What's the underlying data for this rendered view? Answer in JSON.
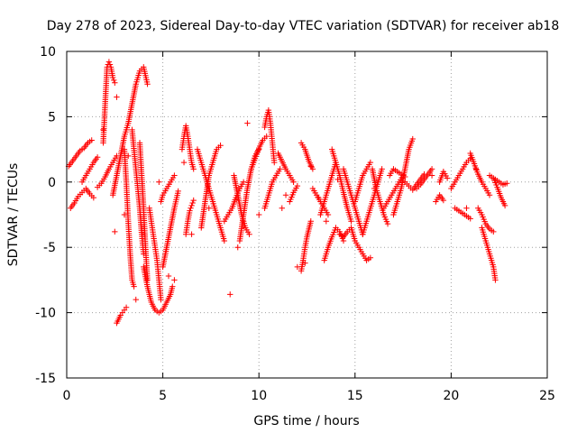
{
  "chart_data": {
    "type": "scatter",
    "title": "Day 278 of 2023, Sidereal Day-to-day VTEC variation (SDTVAR) for receiver ab18",
    "xlabel": "GPS time / hours",
    "ylabel": "SDTVAR / TECUs",
    "xlim": [
      0,
      25
    ],
    "ylim": [
      -15,
      10
    ],
    "xticks": [
      0,
      5,
      10,
      15,
      20,
      25
    ],
    "yticks": [
      -15,
      -10,
      -5,
      0,
      5,
      10
    ],
    "grid": true,
    "colors": {
      "points": "#ff0000",
      "grid": "#a0a0a0",
      "axis": "#000000"
    },
    "series": [
      {
        "name": "tr1",
        "x": [
          0.1,
          0.3,
          0.5,
          0.7,
          0.9,
          1.1,
          1.3
        ],
        "y": [
          1.2,
          1.6,
          2.0,
          2.4,
          2.6,
          3.0,
          3.2
        ]
      },
      {
        "name": "tr2",
        "x": [
          0.2,
          0.4,
          0.6,
          0.8,
          1.0,
          1.2,
          1.4
        ],
        "y": [
          -2.0,
          -1.6,
          -1.1,
          -0.8,
          -0.5,
          -0.9,
          -1.2
        ]
      },
      {
        "name": "tr3",
        "x": [
          0.8,
          1.0,
          1.2,
          1.4,
          1.6
        ],
        "y": [
          0.0,
          0.5,
          1.0,
          1.5,
          1.9
        ]
      },
      {
        "name": "tr4",
        "x": [
          1.6,
          1.8,
          2.0,
          2.2,
          2.4,
          2.6
        ],
        "y": [
          -0.4,
          -0.1,
          0.4,
          1.0,
          1.5,
          2.0
        ]
      },
      {
        "name": "tr5",
        "x": [
          1.9,
          2.0,
          2.1,
          2.2,
          2.3,
          2.4,
          2.5
        ],
        "y": [
          3.0,
          6.0,
          8.8,
          9.2,
          8.8,
          8.0,
          7.6
        ]
      },
      {
        "name": "tr6",
        "x": [
          2.4,
          2.6,
          2.8,
          3.0,
          3.2,
          3.4,
          3.6,
          3.8,
          4.0,
          4.2
        ],
        "y": [
          -1.0,
          0.5,
          2.0,
          3.5,
          4.5,
          6.0,
          7.5,
          8.5,
          8.8,
          7.5
        ]
      },
      {
        "name": "tr7",
        "x": [
          2.6,
          2.7,
          2.8,
          2.9,
          3.0,
          3.1
        ],
        "y": [
          -10.8,
          -10.5,
          -10.2,
          -10.0,
          -9.8,
          -9.6
        ]
      },
      {
        "name": "tr8",
        "x": [
          3.0,
          3.1,
          3.2,
          3.3,
          3.4,
          3.5
        ],
        "y": [
          2.5,
          0.0,
          -3.0,
          -5.5,
          -7.5,
          -8.0
        ]
      },
      {
        "name": "tr9",
        "x": [
          3.4,
          3.6,
          3.8,
          3.9,
          4.0
        ],
        "y": [
          4.0,
          1.0,
          -2.0,
          -4.0,
          -5.5
        ]
      },
      {
        "name": "tr10",
        "x": [
          3.8,
          3.9,
          4.0,
          4.1,
          4.2
        ],
        "y": [
          3.0,
          0.5,
          -2.0,
          -5.0,
          -7.5
        ]
      },
      {
        "name": "tr11",
        "x": [
          4.0,
          4.2,
          4.4,
          4.6,
          4.8,
          5.0,
          5.2,
          5.4,
          5.5
        ],
        "y": [
          -6.5,
          -8.0,
          -9.2,
          -9.8,
          -10.0,
          -9.8,
          -9.2,
          -8.6,
          -8.0
        ]
      },
      {
        "name": "tr12",
        "x": [
          4.3,
          4.4,
          4.5,
          4.6,
          4.7,
          4.8,
          4.9
        ],
        "y": [
          -2.0,
          -3.0,
          -4.0,
          -5.0,
          -6.0,
          -7.5,
          -9.0
        ]
      },
      {
        "name": "tr13",
        "x": [
          4.9,
          5.0,
          5.2,
          5.4,
          5.6
        ],
        "y": [
          -1.5,
          -1.0,
          -0.5,
          0.0,
          0.5
        ]
      },
      {
        "name": "tr14",
        "x": [
          5.0,
          5.2,
          5.4,
          5.6,
          5.8
        ],
        "y": [
          -6.5,
          -5.0,
          -3.5,
          -2.0,
          -0.7
        ]
      },
      {
        "name": "tr15",
        "x": [
          6.0,
          6.1,
          6.2,
          6.3,
          6.4,
          6.5,
          6.6
        ],
        "y": [
          2.5,
          3.5,
          4.3,
          3.5,
          2.5,
          1.5,
          1.0
        ]
      },
      {
        "name": "tr16",
        "x": [
          6.2,
          6.3,
          6.4,
          6.5,
          6.6
        ],
        "y": [
          -4.0,
          -3.0,
          -2.2,
          -1.8,
          -1.4
        ]
      },
      {
        "name": "tr17",
        "x": [
          6.8,
          7.0,
          7.2,
          7.4,
          7.6,
          7.8,
          8.0,
          8.2
        ],
        "y": [
          2.5,
          1.5,
          0.5,
          -0.5,
          -1.5,
          -2.5,
          -3.5,
          -4.5
        ]
      },
      {
        "name": "tr18",
        "x": [
          7.0,
          7.2,
          7.4,
          7.6,
          7.8,
          8.0
        ],
        "y": [
          -3.5,
          -1.5,
          0.5,
          1.5,
          2.5,
          2.8
        ]
      },
      {
        "name": "tr19",
        "x": [
          8.2,
          8.4,
          8.6,
          8.8,
          9.0,
          9.2
        ],
        "y": [
          -3.0,
          -2.5,
          -2.0,
          -1.2,
          -0.5,
          0.0
        ]
      },
      {
        "name": "tr20",
        "x": [
          8.7,
          8.9,
          9.1,
          9.3,
          9.5
        ],
        "y": [
          0.5,
          -1.0,
          -2.5,
          -3.5,
          -4.0
        ]
      },
      {
        "name": "tr21",
        "x": [
          9.0,
          9.2,
          9.4,
          9.6,
          9.8,
          10.0
        ],
        "y": [
          -4.5,
          -2.5,
          -0.5,
          1.0,
          2.0,
          2.5
        ]
      },
      {
        "name": "tr22",
        "x": [
          9.6,
          9.8,
          10.0,
          10.2,
          10.4
        ],
        "y": [
          1.0,
          1.8,
          2.6,
          3.2,
          3.5
        ]
      },
      {
        "name": "tr23",
        "x": [
          10.3,
          10.4,
          10.5,
          10.6,
          10.7,
          10.8
        ],
        "y": [
          4.2,
          5.0,
          5.5,
          4.5,
          3.0,
          1.5
        ]
      },
      {
        "name": "tr24",
        "x": [
          10.3,
          10.5,
          10.7,
          10.9,
          11.1
        ],
        "y": [
          -2.0,
          -1.0,
          0.0,
          0.5,
          1.0
        ]
      },
      {
        "name": "tr25",
        "x": [
          11.0,
          11.2,
          11.4,
          11.6,
          11.8
        ],
        "y": [
          2.2,
          1.6,
          1.0,
          0.5,
          0.0
        ]
      },
      {
        "name": "tr26",
        "x": [
          11.6,
          11.8,
          12.0
        ],
        "y": [
          -1.5,
          -0.8,
          -0.3
        ]
      },
      {
        "name": "tr27",
        "x": [
          12.2,
          12.3,
          12.4,
          12.5,
          12.6,
          12.7
        ],
        "y": [
          -6.8,
          -6.0,
          -5.0,
          -4.2,
          -3.6,
          -3.0
        ]
      },
      {
        "name": "tr28",
        "x": [
          12.2,
          12.4,
          12.6,
          12.8
        ],
        "y": [
          3.0,
          2.5,
          1.6,
          1.0
        ]
      },
      {
        "name": "tr29",
        "x": [
          12.8,
          13.0,
          13.2,
          13.4,
          13.6
        ],
        "y": [
          -0.5,
          -1.0,
          -1.5,
          -2.0,
          -2.5
        ]
      },
      {
        "name": "tr30",
        "x": [
          13.2,
          13.4,
          13.6,
          13.8,
          14.0
        ],
        "y": [
          -2.5,
          -1.5,
          -0.5,
          0.5,
          1.5
        ]
      },
      {
        "name": "tr31",
        "x": [
          13.4,
          13.6,
          13.8,
          14.0,
          14.2,
          14.4
        ],
        "y": [
          -6.0,
          -5.0,
          -4.2,
          -3.5,
          -3.8,
          -4.5
        ]
      },
      {
        "name": "tr32",
        "x": [
          13.8,
          14.0,
          14.2,
          14.4,
          14.6,
          14.8
        ],
        "y": [
          2.5,
          1.5,
          0.5,
          -0.8,
          -2.0,
          -3.0
        ]
      },
      {
        "name": "tr33",
        "x": [
          14.2,
          14.4,
          14.6,
          14.8,
          15.0,
          15.2,
          15.4,
          15.6,
          15.8
        ],
        "y": [
          -4.0,
          -4.2,
          -3.8,
          -3.5,
          -4.5,
          -5.0,
          -5.5,
          -6.0,
          -5.8
        ]
      },
      {
        "name": "tr34",
        "x": [
          14.4,
          14.6,
          14.8,
          15.0,
          15.2,
          15.4
        ],
        "y": [
          1.0,
          0.0,
          -1.0,
          -2.0,
          -3.0,
          -4.0
        ]
      },
      {
        "name": "tr35",
        "x": [
          15.0,
          15.2,
          15.4,
          15.6,
          15.8
        ],
        "y": [
          -1.5,
          -0.5,
          0.5,
          1.0,
          1.5
        ]
      },
      {
        "name": "tr36",
        "x": [
          15.4,
          15.6,
          15.8,
          16.0,
          16.2,
          16.4
        ],
        "y": [
          -4.0,
          -3.0,
          -2.0,
          -1.0,
          0.0,
          1.0
        ]
      },
      {
        "name": "tr37",
        "x": [
          15.9,
          16.1,
          16.3,
          16.5,
          16.7
        ],
        "y": [
          1.0,
          -0.5,
          -1.5,
          -2.5,
          -3.2
        ]
      },
      {
        "name": "tr38",
        "x": [
          16.5,
          16.7,
          16.9,
          17.1,
          17.3,
          17.5
        ],
        "y": [
          -2.0,
          -1.5,
          -1.0,
          -0.5,
          0.0,
          0.5
        ]
      },
      {
        "name": "tr39",
        "x": [
          17.0,
          17.2,
          17.4,
          17.6,
          17.8,
          18.0
        ],
        "y": [
          -2.5,
          -1.5,
          -0.5,
          1.0,
          2.5,
          3.3
        ]
      },
      {
        "name": "tr40",
        "x": [
          16.8,
          17.0,
          17.2,
          17.4,
          17.6
        ],
        "y": [
          0.5,
          1.0,
          0.8,
          0.6,
          0.4
        ]
      },
      {
        "name": "tr41",
        "x": [
          17.6,
          17.8,
          18.0,
          18.2,
          18.4,
          18.6
        ],
        "y": [
          0.0,
          -0.3,
          -0.6,
          -0.2,
          0.2,
          0.6
        ]
      },
      {
        "name": "tr42",
        "x": [
          18.2,
          18.4,
          18.6,
          18.8,
          19.0
        ],
        "y": [
          -0.5,
          -0.2,
          0.2,
          0.6,
          1.0
        ]
      },
      {
        "name": "tr43",
        "x": [
          19.4,
          19.6,
          19.8
        ],
        "y": [
          0.0,
          0.8,
          0.3
        ]
      },
      {
        "name": "tr44",
        "x": [
          19.2,
          19.4,
          19.6
        ],
        "y": [
          -1.5,
          -1.0,
          -1.4
        ]
      },
      {
        "name": "tr45",
        "x": [
          20.0,
          20.2,
          20.4,
          20.6,
          20.8,
          21.0
        ],
        "y": [
          -0.5,
          0.0,
          0.5,
          1.0,
          1.5,
          1.8
        ]
      },
      {
        "name": "tr46",
        "x": [
          20.2,
          20.4,
          20.6,
          20.8,
          21.0
        ],
        "y": [
          -2.0,
          -2.2,
          -2.4,
          -2.6,
          -2.8
        ]
      },
      {
        "name": "tr47",
        "x": [
          21.0,
          21.2,
          21.4,
          21.6,
          21.8,
          22.0
        ],
        "y": [
          2.2,
          1.4,
          0.6,
          0.0,
          -0.5,
          -1.0
        ]
      },
      {
        "name": "tr48",
        "x": [
          21.4,
          21.6,
          21.8,
          22.0,
          22.2
        ],
        "y": [
          -2.0,
          -2.5,
          -3.2,
          -3.6,
          -3.8
        ]
      },
      {
        "name": "tr49",
        "x": [
          21.6,
          21.8,
          22.0,
          22.2,
          22.3
        ],
        "y": [
          -3.5,
          -4.5,
          -5.5,
          -6.5,
          -7.5
        ]
      },
      {
        "name": "tr50",
        "x": [
          22.0,
          22.2,
          22.4,
          22.6,
          22.8
        ],
        "y": [
          0.5,
          0.3,
          -0.4,
          -1.2,
          -1.8
        ]
      },
      {
        "name": "tr51",
        "x": [
          22.3,
          22.5,
          22.7,
          22.9
        ],
        "y": [
          0.2,
          0.0,
          -0.2,
          -0.1
        ]
      }
    ],
    "scattered": {
      "x": [
        1.9,
        2.5,
        2.6,
        3.0,
        3.2,
        3.6,
        4.8,
        5.3,
        5.6,
        6.1,
        6.5,
        7.4,
        8.5,
        8.9,
        9.4,
        10.0,
        11.2,
        11.4,
        12.0,
        12.4,
        12.7,
        13.1,
        13.5,
        14.1,
        16.0,
        17.2,
        19.0,
        20.8,
        21.3
      ],
      "y": [
        4.0,
        -3.8,
        6.5,
        -2.5,
        2.0,
        -9.0,
        0.0,
        -7.2,
        -7.5,
        1.5,
        -4.0,
        -2.0,
        -8.6,
        -5.0,
        4.5,
        -2.5,
        -2.0,
        -1.0,
        -6.5,
        -6.2,
        1.2,
        -1.2,
        -3.0,
        0.2,
        -0.5,
        -1.5,
        0.5,
        -2.0,
        1.0
      ]
    }
  }
}
